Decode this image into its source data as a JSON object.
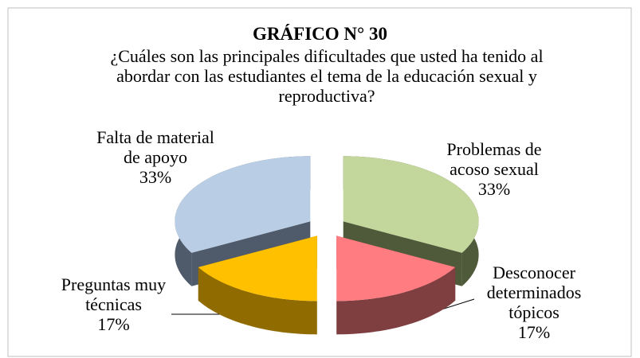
{
  "chart_data": {
    "type": "pie",
    "title": "GRÁFICO N° 30",
    "subtitle": "¿Cuáles son las principales dificultades que usted ha tenido al abordar con las estudiantes el tema de la educación sexual y reproductiva?",
    "categories": [
      "Problemas de acoso sexual",
      "Desconocer determinados tópicos",
      "Preguntas muy técnicas",
      "Falta de material de apoyo"
    ],
    "values": [
      33,
      17,
      17,
      33
    ],
    "value_labels": [
      "33%",
      "17%",
      "17%",
      "33%"
    ],
    "colors": [
      "#c3d69b",
      "#ff7c80",
      "#ffc000",
      "#b9cde5"
    ],
    "side_colors": [
      "#4f5a3a",
      "#7f3e40",
      "#8f6b00",
      "#4f5b6b"
    ]
  }
}
